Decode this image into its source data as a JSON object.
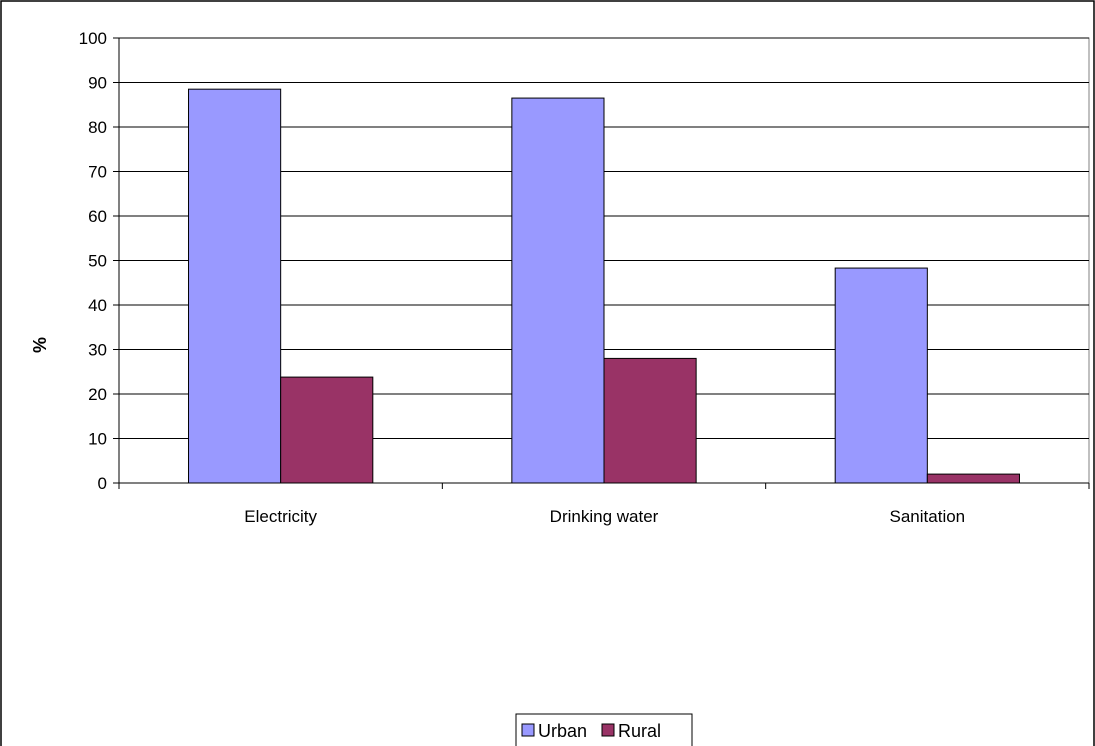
{
  "chart_data": {
    "type": "bar",
    "title": "",
    "xlabel": "",
    "ylabel": "%",
    "ylim": [
      0,
      100
    ],
    "yticks": [
      0,
      10,
      20,
      30,
      40,
      50,
      60,
      70,
      80,
      90,
      100
    ],
    "categories": [
      "Electricity",
      "Drinking water",
      "Sanitation"
    ],
    "series": [
      {
        "name": "Urban",
        "color": "#9999ff",
        "values": [
          88.5,
          86.5,
          48.3
        ]
      },
      {
        "name": "Rural",
        "color": "#993366",
        "values": [
          23.8,
          28.0,
          2.0
        ]
      }
    ],
    "grid": true,
    "legend_position": "bottom"
  }
}
